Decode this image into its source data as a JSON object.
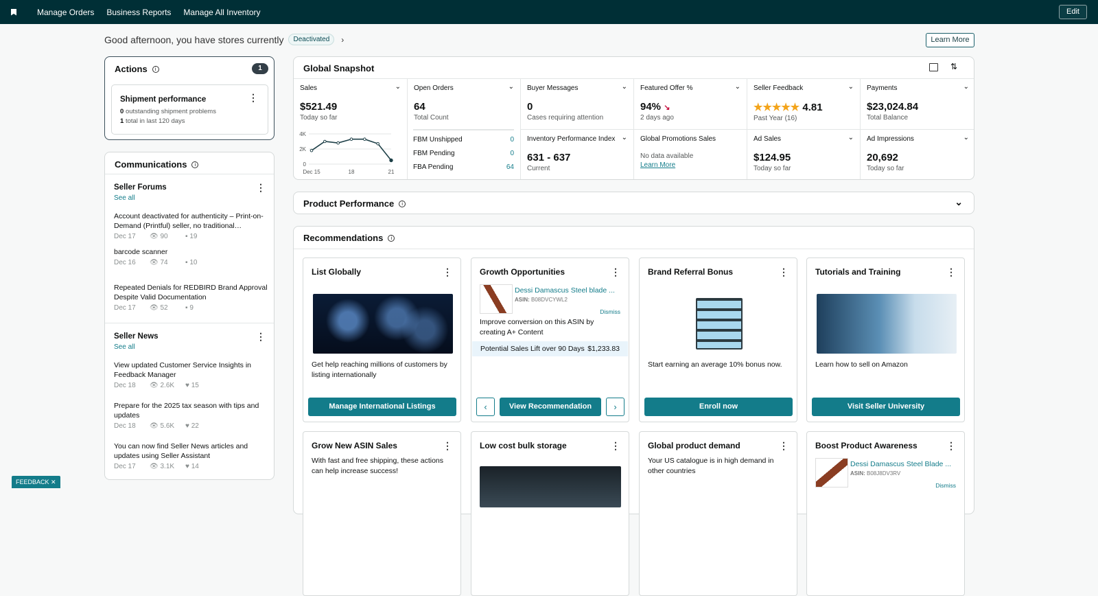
{
  "nav": {
    "items": [
      "Manage Orders",
      "Business Reports",
      "Manage All Inventory"
    ],
    "edit": "Edit"
  },
  "greeting": {
    "text": "Good afternoon, you have stores currently",
    "status": "Deactivated",
    "learn_more": "Learn More"
  },
  "actions": {
    "title": "Actions",
    "count": "1",
    "item": {
      "title": "Shipment performance",
      "line1_num": "0",
      "line1": "outstanding shipment problems",
      "line2_num": "1",
      "line2": "total in last 120 days"
    }
  },
  "communications": {
    "title": "Communications",
    "forums": {
      "title": "Seller Forums",
      "see_all": "See all",
      "posts": [
        {
          "title": "Account deactivated for authenticity – Print-on-Demand (Printful) seller, no traditional…",
          "date": "Dec 17",
          "views": "90",
          "comments": "19"
        },
        {
          "title": "barcode scanner",
          "date": "Dec 16",
          "views": "74",
          "comments": "10"
        },
        {
          "title": "Repeated Denials for REDBIRD Brand Approval Despite Valid Documentation",
          "date": "Dec 17",
          "views": "52",
          "comments": "9"
        }
      ]
    },
    "news": {
      "title": "Seller News",
      "see_all": "See all",
      "posts": [
        {
          "title": "View updated Customer Service Insights in Feedback Manager",
          "date": "Dec 18",
          "views": "2.6K",
          "likes": "15"
        },
        {
          "title": "Prepare for the 2025 tax season with tips and updates",
          "date": "Dec 18",
          "views": "5.6K",
          "likes": "22"
        },
        {
          "title": "You can now find Seller News articles and updates using Seller Assistant",
          "date": "Dec 17",
          "views": "3.1K",
          "likes": "14"
        }
      ]
    }
  },
  "snapshot": {
    "title": "Global Snapshot",
    "sales": {
      "label": "Sales",
      "value": "$521.49",
      "sub": "Today so far"
    },
    "open_orders": {
      "label": "Open Orders",
      "value": "64",
      "sub": "Total Count",
      "rows": [
        {
          "label": "FBM Unshipped",
          "value": "0"
        },
        {
          "label": "FBM Pending",
          "value": "0"
        },
        {
          "label": "FBA Pending",
          "value": "64"
        }
      ]
    },
    "buyer_messages": {
      "label": "Buyer Messages",
      "value": "0",
      "sub": "Cases requiring attention"
    },
    "featured_offer": {
      "label": "Featured Offer %",
      "value": "94%",
      "sub": "2 days ago",
      "trend": "down"
    },
    "seller_feedback": {
      "label": "Seller Feedback",
      "value": "4.81",
      "sub": "Past Year (16)",
      "stars": 4.81
    },
    "payments": {
      "label": "Payments",
      "value": "$23,024.84",
      "sub": "Total Balance"
    },
    "ipi": {
      "label": "Inventory Performance Index",
      "value": "631 - 637",
      "sub": "Current"
    },
    "promotions": {
      "label": "Global Promotions Sales",
      "sub": "No data available",
      "link": "Learn More"
    },
    "ad_sales": {
      "label": "Ad Sales",
      "value": "$124.95",
      "sub": "Today so far"
    },
    "ad_impressions": {
      "label": "Ad Impressions",
      "value": "20,692",
      "sub": "Today so far"
    }
  },
  "chart_data": {
    "type": "line",
    "x": [
      "Dec 15",
      "Dec 16",
      "Dec 17",
      "Dec 18",
      "Dec 19",
      "Dec 20",
      "Dec 21"
    ],
    "x_tick_labels": [
      "Dec 15",
      "18",
      "21"
    ],
    "y_tick_labels": [
      "0",
      "2K",
      "4K"
    ],
    "values": [
      1800,
      3000,
      2800,
      3300,
      3300,
      2700,
      500
    ],
    "ylim": [
      0,
      4000
    ],
    "grid": true,
    "color": "#1d3f47"
  },
  "product_performance": {
    "title": "Product Performance"
  },
  "recommendations": {
    "title": "Recommendations",
    "cards": [
      {
        "title": "List Globally",
        "desc": "Get help reaching millions of customers by listing internationally",
        "button": "Manage International Listings"
      },
      {
        "title": "Growth Opportunities",
        "product": "Dessi Damascus Steel blade ...",
        "asin_label": "ASIN:",
        "asin": "B08DVCYWL2",
        "dismiss": "Dismiss",
        "desc": "Improve conversion on this ASIN by creating A+ Content",
        "lift_label": "Potential Sales Lift over 90 Days",
        "lift": "$1,233.83",
        "button": "View Recommendation"
      },
      {
        "title": "Brand Referral Bonus",
        "desc": "Start earning an average 10% bonus now.",
        "button": "Enroll now"
      },
      {
        "title": "Tutorials and Training",
        "desc": "Learn how to sell on Amazon",
        "button": "Visit Seller University"
      },
      {
        "title": "Grow New ASIN Sales",
        "desc": "With fast and free shipping, these actions can help increase success!"
      },
      {
        "title": "Low cost bulk storage"
      },
      {
        "title": "Global product demand",
        "desc": "Your US catalogue is in high demand in other countries"
      },
      {
        "title": "Boost Product Awareness",
        "product": "Dessi Damascus Steel Blade ...",
        "asin_label": "ASIN:",
        "asin": "B08J8DV3RV",
        "dismiss": "Dismiss"
      }
    ]
  },
  "feedback": "FEEDBACK ✕"
}
